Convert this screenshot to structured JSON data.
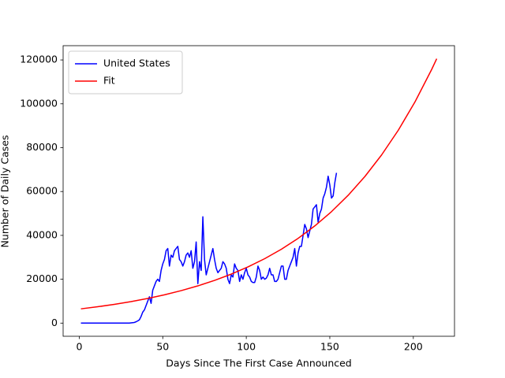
{
  "chart_data": {
    "type": "line",
    "xlabel": "Days Since The First Case Announced",
    "ylabel": "Number of Daily Cases",
    "xlim": [
      -9.65,
      224.65
    ],
    "ylim": [
      -6000,
      126500
    ],
    "xticks": [
      0,
      50,
      100,
      150,
      200
    ],
    "yticks": [
      0,
      20000,
      40000,
      60000,
      80000,
      100000,
      120000
    ],
    "legend": "upper left",
    "series": [
      {
        "name": "United States",
        "color": "#0000ff",
        "x": [
          1,
          2,
          3,
          4,
          5,
          6,
          7,
          8,
          9,
          10,
          11,
          12,
          13,
          14,
          15,
          16,
          17,
          18,
          19,
          20,
          21,
          22,
          23,
          24,
          25,
          26,
          27,
          28,
          29,
          30,
          31,
          32,
          33,
          34,
          35,
          36,
          37,
          38,
          39,
          40,
          41,
          42,
          43,
          44,
          45,
          46,
          47,
          48,
          49,
          50,
          51,
          52,
          53,
          54,
          55,
          56,
          57,
          58,
          59,
          60,
          61,
          62,
          63,
          64,
          65,
          66,
          67,
          68,
          69,
          70,
          71,
          72,
          73,
          74,
          75,
          76,
          77,
          78,
          79,
          80,
          81,
          82,
          83,
          84,
          85,
          86,
          87,
          88,
          89,
          90,
          91,
          92,
          93,
          94,
          95,
          96,
          97,
          98,
          99,
          100,
          101,
          102,
          103,
          104,
          105,
          106,
          107,
          108,
          109,
          110,
          111,
          112,
          113,
          114,
          115,
          116,
          117,
          118,
          119,
          120,
          121,
          122,
          123,
          124,
          125,
          126,
          127,
          128,
          129,
          130,
          131,
          132,
          133,
          134,
          135,
          136,
          137,
          138,
          139,
          140,
          141,
          142,
          143,
          144,
          145,
          146,
          147,
          148,
          149,
          150,
          151,
          152,
          153,
          154
        ],
        "values": [
          0,
          0,
          0,
          0,
          0,
          0,
          0,
          0,
          0,
          0,
          0,
          0,
          0,
          0,
          0,
          0,
          0,
          0,
          0,
          0,
          0,
          0,
          0,
          0,
          0,
          0,
          0,
          0,
          0,
          0,
          100,
          200,
          300,
          600,
          1000,
          1500,
          3000,
          5000,
          6000,
          8000,
          10000,
          12000,
          9000,
          15000,
          17000,
          19000,
          20000,
          19000,
          24000,
          27000,
          29000,
          33000,
          34000,
          26000,
          31000,
          30000,
          33000,
          34000,
          35000,
          29000,
          28000,
          26000,
          28000,
          31000,
          32000,
          30000,
          33000,
          25000,
          28000,
          37000,
          18000,
          28000,
          24000,
          48500,
          29000,
          22000,
          25000,
          28000,
          31000,
          34000,
          29000,
          25000,
          23000,
          24000,
          25000,
          28000,
          27000,
          25000,
          20000,
          18000,
          22000,
          21000,
          27000,
          25000,
          24000,
          19000,
          22000,
          20000,
          23000,
          25000,
          22000,
          21000,
          19000,
          18500,
          18500,
          21000,
          26000,
          24000,
          20000,
          21000,
          20000,
          20500,
          22000,
          25000,
          22000,
          22000,
          19000,
          19000,
          20000,
          23000,
          26000,
          26000,
          20000,
          20000,
          24000,
          26000,
          28000,
          30000,
          34000,
          26000,
          32000,
          35000,
          35000,
          40000,
          45000,
          43000,
          39000,
          42000,
          45000,
          52000,
          53000,
          54000,
          46000,
          50000,
          52000,
          57000,
          59000,
          62000,
          67000,
          63000,
          57000,
          58000,
          64000,
          68500
        ]
      },
      {
        "name": "Fit",
        "color": "#ff0000",
        "x": [
          1,
          11,
          21,
          31,
          41,
          51,
          61,
          71,
          81,
          91,
          101,
          111,
          121,
          131,
          141,
          151,
          161,
          171,
          181,
          191,
          201,
          211,
          214
        ],
        "values": [
          6500,
          7455,
          8551,
          9807,
          11248,
          12901,
          14797,
          16971,
          19465,
          22325,
          25605,
          29368,
          33683,
          38632,
          44309,
          50820,
          58287,
          66852,
          76676,
          87941,
          100861,
          115681,
          120543
        ]
      }
    ]
  }
}
